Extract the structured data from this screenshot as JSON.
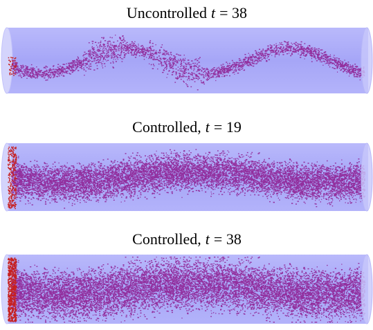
{
  "panels": [
    {
      "prefix": "Uncontrolled",
      "variable": "t",
      "rest": "= 38"
    },
    {
      "prefix": "Controlled,",
      "variable": "t",
      "rest": "= 19"
    },
    {
      "prefix": "Controlled,",
      "variable": "t",
      "rest": "= 38"
    }
  ]
}
